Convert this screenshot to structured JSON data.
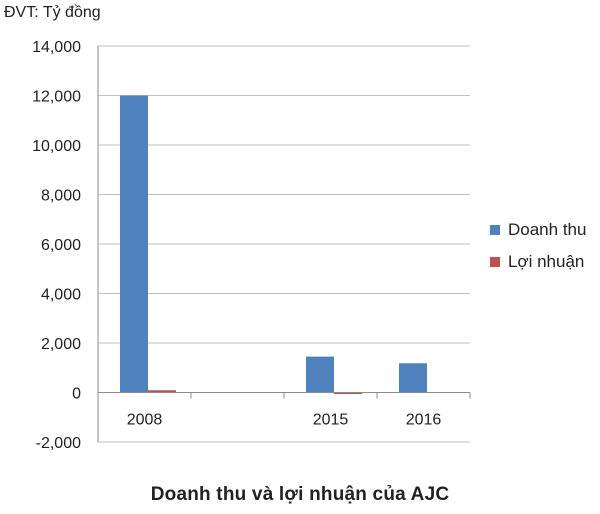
{
  "chart_data": {
    "type": "bar",
    "unit_label": "ĐVT: Tỷ đồng",
    "title": "Doanh thu và lợi nhuận của AJC",
    "categories": [
      "2008",
      "",
      "2015",
      "2016"
    ],
    "series": [
      {
        "name": "Doanh thu",
        "color": "#4f81bd",
        "values": [
          12000,
          null,
          1450,
          1180
        ]
      },
      {
        "name": "Lợi nhuận",
        "color": "#c0504d",
        "values": [
          90,
          null,
          -40,
          null
        ]
      }
    ],
    "ylim": [
      -2000,
      14000
    ],
    "yticks": [
      -2000,
      0,
      2000,
      4000,
      6000,
      8000,
      10000,
      12000,
      14000
    ],
    "ytick_labels": [
      "-2,000",
      "0",
      "2,000",
      "4,000",
      "6,000",
      "8,000",
      "10,000",
      "12,000",
      "14,000"
    ],
    "grid": true,
    "legend_position": "right"
  }
}
